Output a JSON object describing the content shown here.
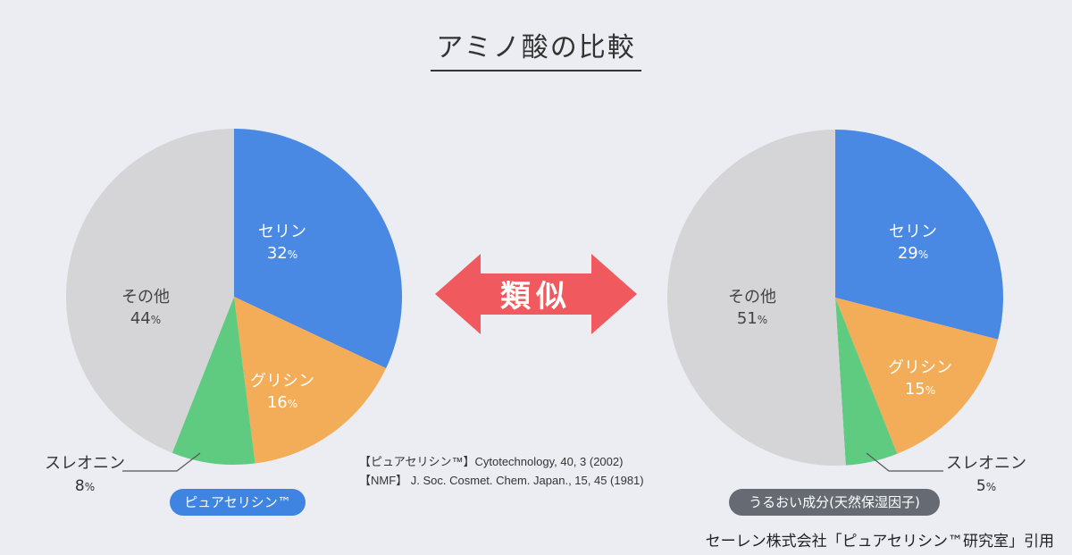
{
  "title": "アミノ酸の比較",
  "center_label": "類似",
  "colors": {
    "serine": "#4a89e3",
    "glycine": "#f3ad58",
    "threonine": "#5ecb81",
    "other": "#d5d5d8",
    "arrow": "#f0595d",
    "pill_left": "#3f84e0",
    "pill_right": "#666b73"
  },
  "references": [
    "【ピュアセリシン™】Cytotechnology, 40, 3 (2002)",
    "【NMF】 J. Soc. Cosmet. Chem. Japan., 15, 45 (1981)"
  ],
  "badges": {
    "left": "ピュアセリシン™",
    "right": "うるおい成分(天然保湿因子)"
  },
  "credit": "セーレン株式会社「ピュアセリシン™研究室」引用",
  "chart_data": [
    {
      "type": "pie",
      "title": "",
      "caption": "ピュアセリシン™",
      "slices": [
        {
          "label": "セリン",
          "value": 32,
          "unit": "%",
          "color": "#4a89e3"
        },
        {
          "label": "グリシン",
          "value": 16,
          "unit": "%",
          "color": "#f3ad58"
        },
        {
          "label": "スレオニン",
          "value": 8,
          "unit": "%",
          "color": "#5ecb81"
        },
        {
          "label": "その他",
          "value": 44,
          "unit": "%",
          "color": "#d5d5d8"
        }
      ]
    },
    {
      "type": "pie",
      "title": "",
      "caption": "うるおい成分(天然保湿因子)",
      "slices": [
        {
          "label": "セリン",
          "value": 29,
          "unit": "%",
          "color": "#4a89e3"
        },
        {
          "label": "グリシン",
          "value": 15,
          "unit": "%",
          "color": "#f3ad58"
        },
        {
          "label": "スレオニン",
          "value": 5,
          "unit": "%",
          "color": "#5ecb81"
        },
        {
          "label": "その他",
          "value": 51,
          "unit": "%",
          "color": "#d5d5d8"
        }
      ]
    }
  ]
}
